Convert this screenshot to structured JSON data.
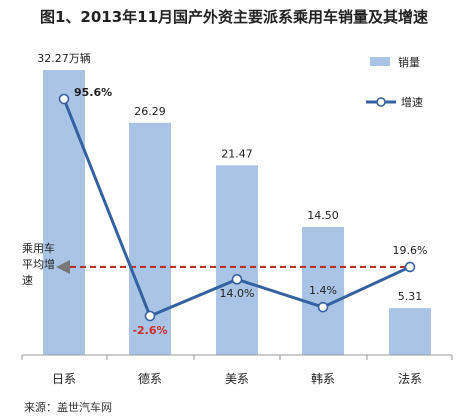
{
  "chart_data": {
    "type": "bar",
    "title": "图1、2013年11月国产外资主要派系乘用车销量及其增速",
    "categories": [
      "日系",
      "德系",
      "美系",
      "韩系",
      "法系"
    ],
    "series": [
      {
        "name": "销量",
        "kind": "bar",
        "values": [
          32.27,
          26.29,
          21.47,
          14.5,
          5.31
        ],
        "color": "#a9c4e4"
      },
      {
        "name": "增速",
        "kind": "line",
        "values": [
          95.6,
          -2.6,
          14.0,
          1.4,
          19.6
        ],
        "color": "#3561a0",
        "axis": "secondary"
      }
    ],
    "bar_labels": [
      "32.27万辆",
      "26.29",
      "21.47",
      "14.50",
      "5.31"
    ],
    "line_labels": [
      "95.6%",
      "-2.6%",
      "14.0%",
      "1.4%",
      "19.6%"
    ],
    "reference_line": {
      "label": "乘用车平均增速",
      "label_lines": [
        "乘用车",
        "平均增",
        "速"
      ],
      "value": 19.6,
      "color": "#b8332c"
    },
    "bar_axis_range": [
      0,
      35
    ],
    "line_axis_range": [
      -10,
      110
    ],
    "legend_position": "top-right",
    "grid": false
  },
  "source": "来源：盖世汽车网"
}
